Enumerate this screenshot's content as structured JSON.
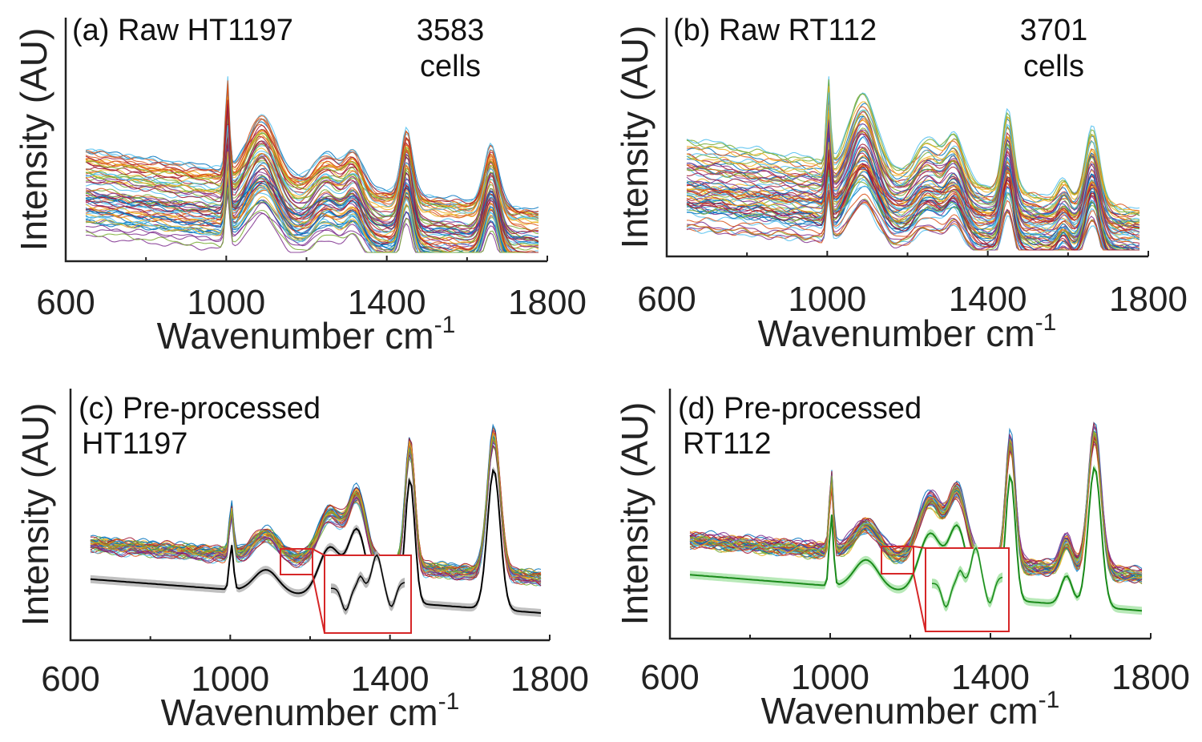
{
  "chart_data": [
    {
      "panel": "a",
      "type": "line",
      "title": "(a) Raw HT1197",
      "annotation": {
        "count": "3583",
        "unit": "cells"
      },
      "xlabel": "Wavenumber cm",
      "xlabel_sup": "-1",
      "ylabel": "Intensity (AU)",
      "xlim": [
        600,
        1800
      ],
      "ylim": [
        0,
        1
      ],
      "xticks": [
        600,
        1000,
        1400,
        1800
      ],
      "x_range": [
        650,
        1780
      ],
      "series_description": "3583 individual raw cell spectra (multicolored)",
      "peaks": [
        {
          "x": 1003,
          "h": 0.62,
          "w": 5
        },
        {
          "x": 1090,
          "h": 0.42,
          "w": 35
        },
        {
          "x": 1250,
          "h": 0.22,
          "w": 30
        },
        {
          "x": 1318,
          "h": 0.26,
          "w": 22
        },
        {
          "x": 1450,
          "h": 0.48,
          "w": 14
        },
        {
          "x": 1660,
          "h": 0.45,
          "w": 18
        }
      ],
      "baseline": {
        "start": 0.55,
        "end": 0.08
      },
      "spread": 0.42,
      "n_draw": 70,
      "palette": [
        "#0072bd",
        "#d95319",
        "#edb120",
        "#7e2f8e",
        "#77ac30",
        "#4dbeee",
        "#a2142f"
      ]
    },
    {
      "panel": "b",
      "type": "line",
      "title": "(b) Raw RT112",
      "annotation": {
        "count": "3701",
        "unit": "cells"
      },
      "xlabel": "Wavenumber cm",
      "xlabel_sup": "-1",
      "ylabel": "Intensity (AU)",
      "xlim": [
        600,
        1800
      ],
      "ylim": [
        0,
        1
      ],
      "xticks": [
        600,
        1000,
        1400,
        1800
      ],
      "x_range": [
        650,
        1780
      ],
      "series_description": "3701 individual raw cell spectra (multicolored)",
      "peaks": [
        {
          "x": 1003,
          "h": 0.45,
          "w": 5
        },
        {
          "x": 1090,
          "h": 0.4,
          "w": 32
        },
        {
          "x": 1250,
          "h": 0.2,
          "w": 30
        },
        {
          "x": 1318,
          "h": 0.25,
          "w": 22
        },
        {
          "x": 1450,
          "h": 0.42,
          "w": 14
        },
        {
          "x": 1590,
          "h": 0.1,
          "w": 14
        },
        {
          "x": 1660,
          "h": 0.4,
          "w": 18
        }
      ],
      "baseline": {
        "start": 0.45,
        "end": 0.07
      },
      "spread": 0.32,
      "n_draw": 70,
      "palette": [
        "#0072bd",
        "#d95319",
        "#edb120",
        "#7e2f8e",
        "#77ac30",
        "#4dbeee",
        "#a2142f"
      ]
    },
    {
      "panel": "c",
      "type": "line",
      "title": "(c) Pre-processed",
      "title_line2": "HT1197",
      "xlabel": "Wavenumber cm",
      "xlabel_sup": "-1",
      "ylabel": "Intensity (AU)",
      "xlim": [
        600,
        1800
      ],
      "ylim": [
        0,
        1
      ],
      "xticks": [
        600,
        1000,
        1400,
        1800
      ],
      "x_range": [
        650,
        1780
      ],
      "series_description": "Pre-processed spectra (multicolored) with offset mean spectrum and shaded standard deviation",
      "mean_color": "#000000",
      "shade_color": "#b0b0b0",
      "peaks": [
        {
          "x": 1003,
          "h": 0.2,
          "w": 5
        },
        {
          "x": 1090,
          "h": 0.1,
          "w": 30
        },
        {
          "x": 1250,
          "h": 0.22,
          "w": 28
        },
        {
          "x": 1318,
          "h": 0.3,
          "w": 22
        },
        {
          "x": 1450,
          "h": 0.55,
          "w": 12
        },
        {
          "x": 1660,
          "h": 0.62,
          "w": 16
        }
      ],
      "baseline": {
        "start": 0.18,
        "end": 0.03
      },
      "spread": 0.05,
      "n_draw": 40,
      "offset": 0.16,
      "zoom_range": [
        1130,
        1210
      ],
      "palette": [
        "#0072bd",
        "#d95319",
        "#edb120",
        "#7e2f8e",
        "#77ac30",
        "#4dbeee",
        "#a2142f"
      ]
    },
    {
      "panel": "d",
      "type": "line",
      "title": "(d) Pre-processed",
      "title_line2": "RT112",
      "xlabel": "Wavenumber cm",
      "xlabel_sup": "-1",
      "ylabel": "Intensity (AU)",
      "xlim": [
        600,
        1800
      ],
      "ylim": [
        0,
        1
      ],
      "xticks": [
        600,
        1000,
        1400,
        1800
      ],
      "x_range": [
        650,
        1780
      ],
      "series_description": "Pre-processed spectra (multicolored) with offset mean spectrum and shaded standard deviation",
      "mean_color": "#1a8a1a",
      "shade_color": "#a6e3a6",
      "peaks": [
        {
          "x": 1003,
          "h": 0.3,
          "w": 5
        },
        {
          "x": 1090,
          "h": 0.12,
          "w": 30
        },
        {
          "x": 1250,
          "h": 0.25,
          "w": 28
        },
        {
          "x": 1318,
          "h": 0.28,
          "w": 22
        },
        {
          "x": 1450,
          "h": 0.52,
          "w": 12
        },
        {
          "x": 1590,
          "h": 0.12,
          "w": 14
        },
        {
          "x": 1660,
          "h": 0.58,
          "w": 16
        }
      ],
      "baseline": {
        "start": 0.18,
        "end": 0.03
      },
      "spread": 0.05,
      "n_draw": 40,
      "offset": 0.16,
      "zoom_range": [
        1130,
        1210
      ],
      "palette": [
        "#0072bd",
        "#d95319",
        "#edb120",
        "#7e2f8e",
        "#77ac30",
        "#4dbeee",
        "#a2142f"
      ]
    }
  ]
}
